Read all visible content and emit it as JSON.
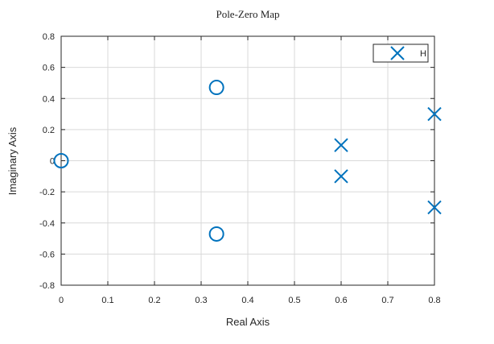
{
  "chart_data": {
    "type": "scatter",
    "title": "Pole-Zero Map",
    "xlabel": "Real Axis",
    "ylabel": "Imaginary Axis",
    "xlim": [
      0,
      0.8
    ],
    "ylim": [
      -0.8,
      0.8
    ],
    "xticks": [
      0,
      0.1,
      0.2,
      0.3,
      0.4,
      0.5,
      0.6,
      0.7,
      0.8
    ],
    "yticks": [
      -0.8,
      -0.6,
      -0.4,
      -0.2,
      0,
      0.2,
      0.4,
      0.6,
      0.8
    ],
    "xtick_labels": [
      "0",
      "0.1",
      "0.2",
      "0.3",
      "0.4",
      "0.5",
      "0.6",
      "0.7",
      "0.8"
    ],
    "ytick_labels": [
      "-0.8",
      "-0.6",
      "-0.4",
      "-0.2",
      "0",
      "0.2",
      "0.4",
      "0.6",
      "0.8"
    ],
    "grid": true,
    "legend_position": "top-right",
    "series": [
      {
        "name": "H",
        "marker": "x",
        "role": "poles",
        "points": [
          {
            "x": 0.6,
            "y": 0.1
          },
          {
            "x": 0.6,
            "y": -0.1
          },
          {
            "x": 0.8,
            "y": 0.3
          },
          {
            "x": 0.8,
            "y": -0.3
          }
        ]
      },
      {
        "name": "",
        "marker": "o",
        "role": "zeros",
        "points": [
          {
            "x": 0.333,
            "y": 0.471
          },
          {
            "x": 0.333,
            "y": -0.471
          },
          {
            "x": 0.0,
            "y": 0.0
          }
        ]
      }
    ],
    "marker_color": "#0072BD",
    "legend_entries": [
      "H"
    ]
  }
}
